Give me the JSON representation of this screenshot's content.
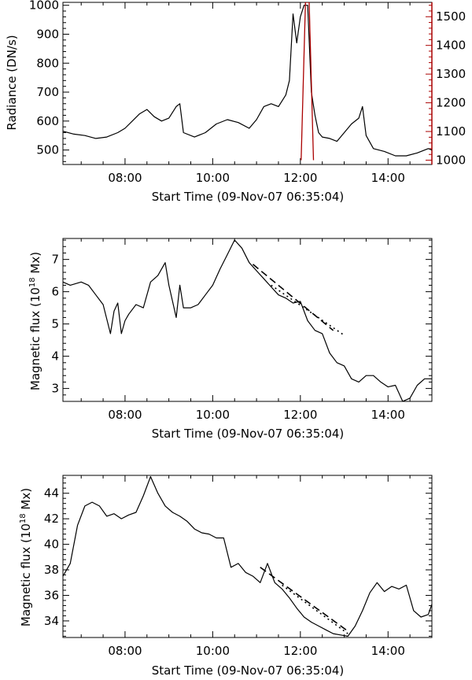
{
  "chart_data": [
    {
      "type": "line",
      "xlabel": "Start Time (09-Nov-07 06:35:04)",
      "ylabel": "Radiance (DN/s)",
      "xlim": [
        "06:35",
        "15:00"
      ],
      "x_ticks": [
        "08:00",
        "10:00",
        "12:00",
        "14:00"
      ],
      "ylim": [
        450,
        1010
      ],
      "y_ticks": [
        500,
        600,
        700,
        800,
        900,
        1000
      ],
      "y2_color": "#aa0000",
      "y2lim": [
        985,
        1550
      ],
      "y2_ticks": [
        1000,
        1100,
        1200,
        1300,
        1400,
        1500
      ],
      "series": [
        {
          "color": "#000000",
          "x": [
            "06:35",
            "06:50",
            "07:05",
            "07:20",
            "07:35",
            "07:50",
            "08:00",
            "08:10",
            "08:20",
            "08:30",
            "08:40",
            "08:50",
            "09:00",
            "09:10",
            "09:15",
            "09:20",
            "09:35",
            "09:50",
            "10:05",
            "10:20",
            "10:35",
            "10:50",
            "11:00",
            "11:10",
            "11:20",
            "11:30",
            "11:40",
            "11:45",
            "11:50",
            "11:55",
            "12:00",
            "12:05",
            "12:10",
            "12:15",
            "12:20",
            "12:25",
            "12:30",
            "12:40",
            "12:50",
            "13:00",
            "13:10",
            "13:20",
            "13:25",
            "13:30",
            "13:40",
            "13:55",
            "14:10",
            "14:25",
            "14:40",
            "14:55",
            "15:00"
          ],
          "values": [
            565,
            555,
            550,
            540,
            545,
            560,
            575,
            600,
            625,
            640,
            615,
            600,
            610,
            650,
            660,
            560,
            545,
            560,
            590,
            605,
            595,
            575,
            605,
            650,
            660,
            650,
            690,
            740,
            970,
            870,
            960,
            1000,
            1000,
            700,
            620,
            560,
            545,
            540,
            530,
            560,
            590,
            610,
            650,
            550,
            505,
            495,
            480,
            480,
            490,
            505,
            500
          ]
        },
        {
          "color": "#aa0000",
          "axis": "right",
          "x": [
            "12:01",
            "12:07",
            "12:12",
            "12:18"
          ],
          "values": [
            1000,
            1550,
            1550,
            1000
          ]
        }
      ]
    },
    {
      "type": "line",
      "xlabel": "Start Time (09-Nov-07 06:35:04)",
      "ylabel": "Magnetic flux (10",
      "ylabel_sup": "18",
      "ylabel_tail": " Mx)",
      "xlim": [
        "06:35",
        "15:00"
      ],
      "x_ticks": [
        "08:00",
        "10:00",
        "12:00",
        "14:00"
      ],
      "ylim": [
        2.6,
        7.65
      ],
      "y_ticks": [
        3,
        4,
        5,
        6,
        7
      ],
      "series": [
        {
          "color": "#000000",
          "x": [
            "06:35",
            "06:45",
            "07:00",
            "07:10",
            "07:20",
            "07:30",
            "07:40",
            "07:45",
            "07:50",
            "07:55",
            "08:00",
            "08:05",
            "08:15",
            "08:25",
            "08:35",
            "08:45",
            "08:55",
            "09:00",
            "09:10",
            "09:15",
            "09:20",
            "09:30",
            "09:40",
            "09:50",
            "10:00",
            "10:10",
            "10:20",
            "10:30",
            "10:40",
            "10:50",
            "11:00",
            "11:10",
            "11:20",
            "11:30",
            "11:40",
            "11:50",
            "12:00",
            "12:10",
            "12:20",
            "12:30",
            "12:40",
            "12:50",
            "13:00",
            "13:10",
            "13:20",
            "13:30",
            "13:40",
            "13:50",
            "14:00",
            "14:10",
            "14:20",
            "14:30",
            "14:40",
            "14:50",
            "15:00"
          ],
          "values": [
            6.3,
            6.2,
            6.3,
            6.2,
            5.9,
            5.6,
            4.7,
            5.4,
            5.65,
            4.7,
            5.1,
            5.3,
            5.6,
            5.5,
            6.3,
            6.5,
            6.9,
            6.2,
            5.2,
            6.2,
            5.5,
            5.5,
            5.6,
            5.9,
            6.2,
            6.7,
            7.15,
            7.6,
            7.35,
            6.9,
            6.65,
            6.4,
            6.15,
            5.9,
            5.8,
            5.65,
            5.7,
            5.1,
            4.8,
            4.7,
            4.1,
            3.8,
            3.7,
            3.3,
            3.2,
            3.4,
            3.4,
            3.2,
            3.05,
            3.1,
            2.6,
            2.7,
            3.1,
            3.3,
            3.3
          ]
        }
      ],
      "fit_lines": [
        {
          "style": "dashed",
          "x": [
            "10:55",
            "12:45"
          ],
          "values": [
            6.85,
            4.8
          ]
        },
        {
          "style": "dotted",
          "x": [
            "11:20",
            "13:00"
          ],
          "values": [
            6.2,
            4.65
          ]
        }
      ]
    },
    {
      "type": "line",
      "xlabel": "Start Time (09-Nov-07 06:35:04)",
      "ylabel": "Magnetic flux (10",
      "ylabel_sup": "18",
      "ylabel_tail": " Mx)",
      "xlim": [
        "06:35",
        "15:00"
      ],
      "x_ticks": [
        "08:00",
        "10:00",
        "12:00",
        "14:00"
      ],
      "ylim": [
        32.7,
        45.4
      ],
      "y_ticks": [
        34,
        36,
        38,
        40,
        42,
        44
      ],
      "series": [
        {
          "color": "#000000",
          "x": [
            "06:35",
            "06:45",
            "06:55",
            "07:05",
            "07:15",
            "07:25",
            "07:35",
            "07:45",
            "07:55",
            "08:05",
            "08:15",
            "08:25",
            "08:35",
            "08:45",
            "08:55",
            "09:05",
            "09:15",
            "09:25",
            "09:35",
            "09:45",
            "09:55",
            "10:05",
            "10:15",
            "10:25",
            "10:35",
            "10:45",
            "10:55",
            "11:05",
            "11:15",
            "11:25",
            "11:35",
            "11:45",
            "11:55",
            "12:05",
            "12:15",
            "12:25",
            "12:35",
            "12:45",
            "12:55",
            "13:05",
            "13:15",
            "13:25",
            "13:35",
            "13:45",
            "13:55",
            "14:05",
            "14:15",
            "14:25",
            "14:35",
            "14:45",
            "14:55",
            "15:00"
          ],
          "values": [
            37.5,
            38.5,
            41.5,
            43,
            43.3,
            43,
            42.2,
            42.4,
            42,
            42.3,
            42.5,
            43.8,
            45.3,
            44,
            43,
            42.5,
            42.2,
            41.8,
            41.2,
            40.9,
            40.8,
            40.5,
            40.5,
            38.2,
            38.5,
            37.8,
            37.5,
            37,
            38.5,
            37,
            36.5,
            35.8,
            35,
            34.3,
            33.9,
            33.6,
            33.3,
            33,
            32.9,
            32.8,
            33.6,
            34.8,
            36.2,
            37,
            36.3,
            36.7,
            36.5,
            36.8,
            34.8,
            34.3,
            34.5,
            35.3
          ]
        }
      ],
      "fit_lines": [
        {
          "style": "dashed",
          "x": [
            "11:05",
            "13:05"
          ],
          "values": [
            38.2,
            33.2
          ]
        },
        {
          "style": "dotted",
          "x": [
            "11:35",
            "13:05"
          ],
          "values": [
            36.8,
            33.0
          ]
        }
      ]
    }
  ]
}
